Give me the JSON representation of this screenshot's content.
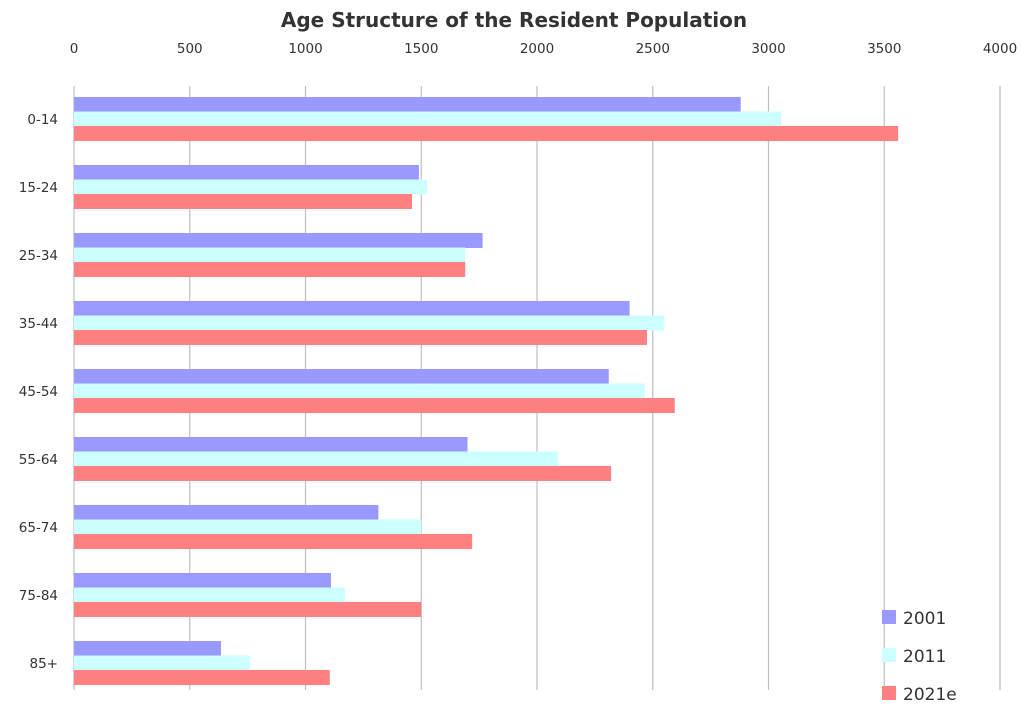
{
  "chart_data": {
    "type": "bar",
    "orientation": "horizontal",
    "title": "Age Structure of the Resident Population",
    "xlabel": "",
    "ylabel": "",
    "xlim": [
      0,
      4000
    ],
    "x_ticks": [
      0,
      500,
      1000,
      1500,
      2000,
      2500,
      3000,
      3500,
      4000
    ],
    "x_axis_position": "top",
    "grid": "vertical",
    "legend_position": "bottom-right",
    "categories": [
      "0-14",
      "15-24",
      "25-34",
      "35-44",
      "45-54",
      "55-64",
      "65-74",
      "75-84",
      "85+"
    ],
    "series": [
      {
        "name": "2001",
        "color": "#9999ff",
        "values": [
          2880,
          1490,
          1765,
          2400,
          2310,
          1700,
          1315,
          1110,
          635
        ]
      },
      {
        "name": "2011",
        "color": "#ccffff",
        "values": [
          3055,
          1525,
          1690,
          2550,
          2465,
          2090,
          1500,
          1170,
          760
        ]
      },
      {
        "name": "2021e",
        "color": "#ff8080",
        "values": [
          3560,
          1460,
          1690,
          2475,
          2595,
          2320,
          1720,
          1500,
          1105
        ]
      }
    ]
  }
}
